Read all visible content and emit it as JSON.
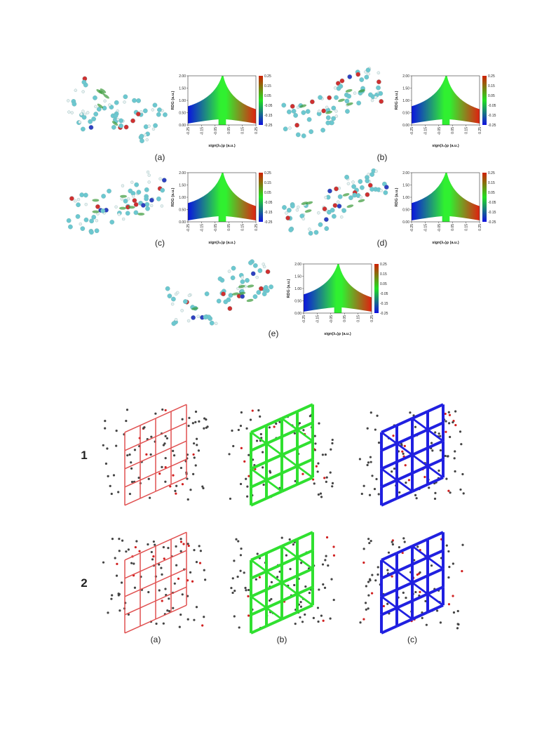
{
  "rdg_figure": {
    "panels": [
      {
        "label": "(a)"
      },
      {
        "label": "(b)"
      },
      {
        "label": "(c)"
      },
      {
        "label": "(d)"
      },
      {
        "label": "(e)"
      }
    ],
    "plot": {
      "type": "scatter",
      "ylabel": "RDG (a.u.)",
      "xlabel": "sign(λ₂)ρ (a.u.)",
      "xlim": [
        -0.25,
        0.25
      ],
      "ylim": [
        0,
        2
      ],
      "xticks": [
        -0.25,
        -0.15,
        -0.05,
        0.05,
        0.15,
        0.25
      ],
      "yticks": [
        {
          "value": 0,
          "label": "0.00"
        },
        {
          "value": 0.5,
          "label": "0.50"
        },
        {
          "value": 1,
          "label": "1.00"
        },
        {
          "value": 1.5,
          "label": "1.50"
        },
        {
          "value": 2,
          "label": "2.00"
        }
      ],
      "colorbar_ticks": [
        0.25,
        0.15,
        0.05,
        -0.05,
        -0.15,
        -0.25
      ]
    }
  },
  "network_figure": {
    "rows": [
      "1",
      "2"
    ],
    "columns": [
      "(a)",
      "(b)",
      "(c)"
    ]
  }
}
